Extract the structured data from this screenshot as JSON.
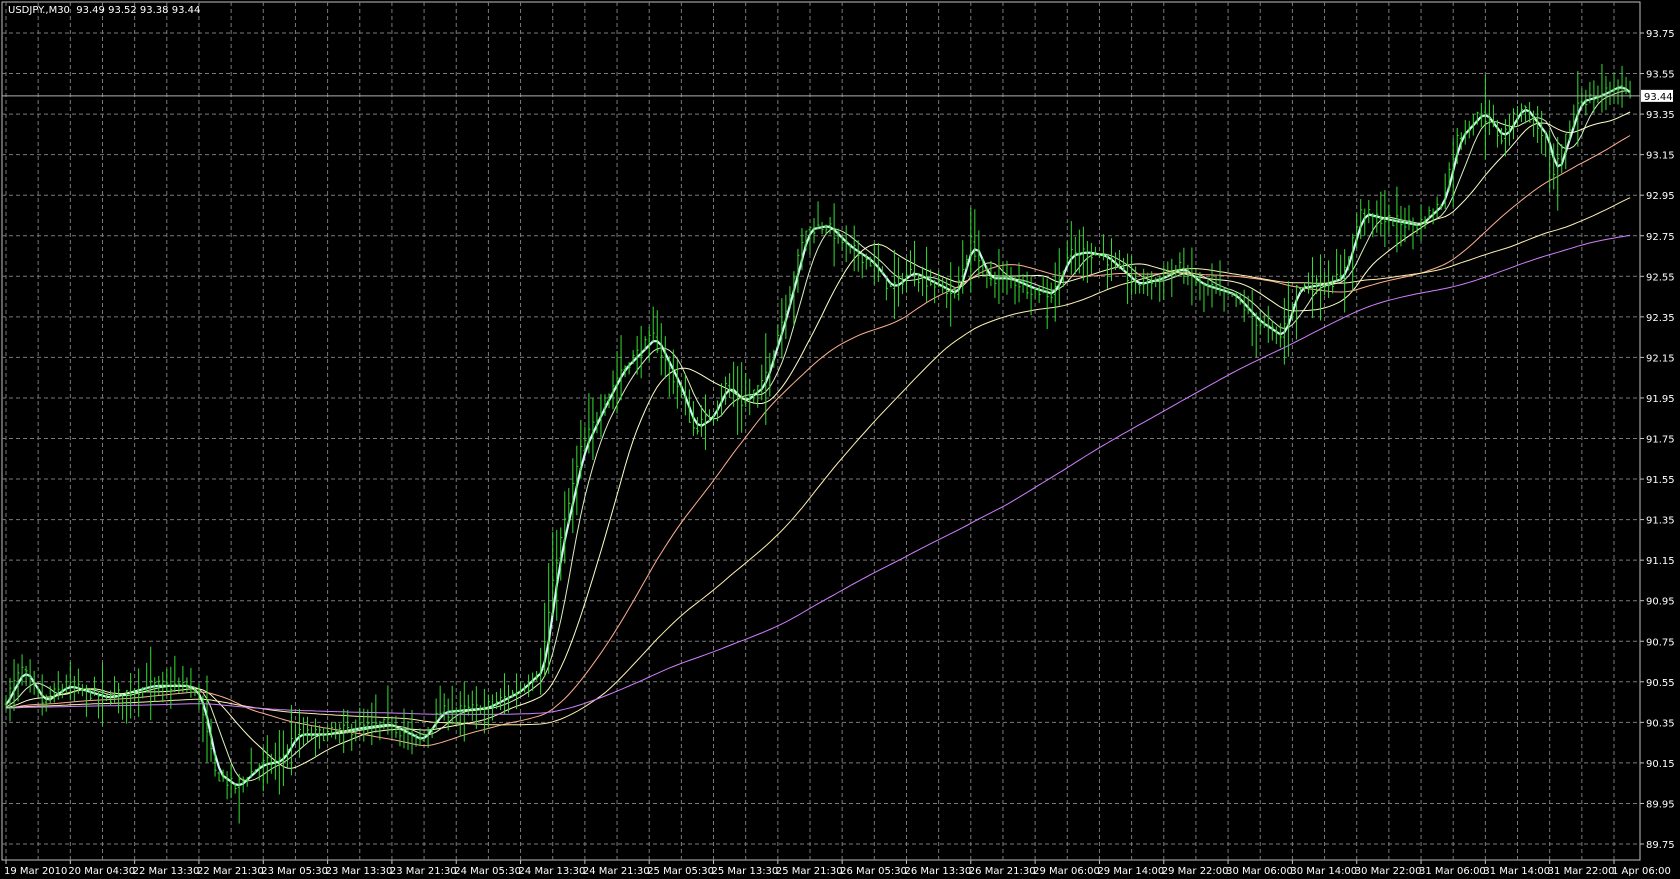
{
  "header": {
    "symbol": "USDJPY.,M30",
    "ohlc": "93.49 93.52 93.38 93.44"
  },
  "chart_data": {
    "type": "bar",
    "subtype": "ohlc",
    "grid": true,
    "colors": {
      "background": "#000000",
      "bars": "#33dd33",
      "grid": "#7a7a7a",
      "axis_text": "#ffffff",
      "bid_line": "#b0b0b0"
    },
    "ylim": [
      89.67,
      93.89
    ],
    "y_ticks": [
      "93.75",
      "93.55",
      "93.35",
      "93.15",
      "92.95",
      "92.75",
      "92.55",
      "92.35",
      "92.15",
      "91.95",
      "91.75",
      "91.55",
      "91.35",
      "91.15",
      "90.95",
      "90.75",
      "90.55",
      "90.35",
      "90.15",
      "89.95",
      "89.75"
    ],
    "x_ticks": [
      "19 Mar 2010",
      "20 Mar 04:30",
      "22 Mar 13:30",
      "22 Mar 21:30",
      "23 Mar 05:30",
      "23 Mar 13:30",
      "23 Mar 21:30",
      "24 Mar 05:30",
      "24 Mar 13:30",
      "24 Mar 21:30",
      "25 Mar 05:30",
      "25 Mar 13:30",
      "25 Mar 21:30",
      "26 Mar 05:30",
      "26 Mar 13:30",
      "26 Mar 21:30",
      "29 Mar 06:00",
      "29 Mar 14:00",
      "29 Mar 22:00",
      "30 Mar 06:00",
      "30 Mar 14:00",
      "30 Mar 22:00",
      "31 Mar 06:00",
      "31 Mar 14:00",
      "31 Mar 22:00",
      "1 Apr 06:00"
    ],
    "bars_per_x_tick": 16,
    "current_price": "93.44",
    "close_path": [
      [
        0,
        90.47
      ],
      [
        4,
        90.61
      ],
      [
        9,
        90.45
      ],
      [
        15,
        90.53
      ],
      [
        25,
        90.47
      ],
      [
        36,
        90.53
      ],
      [
        45,
        90.53
      ],
      [
        48,
        90.47
      ],
      [
        52,
        90.1
      ],
      [
        57,
        90.03
      ],
      [
        63,
        90.14
      ],
      [
        68,
        90.16
      ],
      [
        72,
        90.29
      ],
      [
        79,
        90.29
      ],
      [
        87,
        90.32
      ],
      [
        95,
        90.34
      ],
      [
        103,
        90.26
      ],
      [
        108,
        90.4
      ],
      [
        119,
        90.42
      ],
      [
        127,
        90.5
      ],
      [
        133,
        90.61
      ],
      [
        137,
        91.16
      ],
      [
        143,
        91.69
      ],
      [
        148,
        91.9
      ],
      [
        153,
        92.09
      ],
      [
        161,
        92.25
      ],
      [
        167,
        92.01
      ],
      [
        171,
        91.8
      ],
      [
        175,
        91.85
      ],
      [
        179,
        92.01
      ],
      [
        183,
        91.93
      ],
      [
        188,
        92.01
      ],
      [
        193,
        92.33
      ],
      [
        199,
        92.78
      ],
      [
        204,
        92.8
      ],
      [
        209,
        92.7
      ],
      [
        215,
        92.62
      ],
      [
        220,
        92.49
      ],
      [
        225,
        92.57
      ],
      [
        231,
        92.51
      ],
      [
        236,
        92.46
      ],
      [
        240,
        92.72
      ],
      [
        244,
        92.54
      ],
      [
        249,
        92.54
      ],
      [
        255,
        92.49
      ],
      [
        260,
        92.46
      ],
      [
        264,
        92.65
      ],
      [
        268,
        92.67
      ],
      [
        273,
        92.65
      ],
      [
        281,
        92.51
      ],
      [
        287,
        92.54
      ],
      [
        292,
        92.59
      ],
      [
        297,
        92.51
      ],
      [
        305,
        92.46
      ],
      [
        311,
        92.33
      ],
      [
        317,
        92.25
      ],
      [
        321,
        92.49
      ],
      [
        327,
        92.51
      ],
      [
        332,
        92.54
      ],
      [
        337,
        92.86
      ],
      [
        343,
        92.83
      ],
      [
        351,
        92.8
      ],
      [
        357,
        92.91
      ],
      [
        361,
        93.23
      ],
      [
        367,
        93.36
      ],
      [
        372,
        93.23
      ],
      [
        377,
        93.39
      ],
      [
        383,
        93.23
      ],
      [
        385,
        93.04
      ],
      [
        391,
        93.41
      ],
      [
        396,
        93.44
      ],
      [
        401,
        93.49
      ],
      [
        404,
        93.44
      ]
    ],
    "moving_averages": [
      {
        "period": 3,
        "color": "#d0f4f4"
      },
      {
        "period": 8,
        "color": "#d8f0c0"
      },
      {
        "period": 21,
        "color": "#ffffc8"
      },
      {
        "period": 55,
        "color": "#ffb090"
      },
      {
        "period": 100,
        "color": "#fff0b0"
      },
      {
        "period": 200,
        "color": "#d080ff"
      }
    ]
  }
}
